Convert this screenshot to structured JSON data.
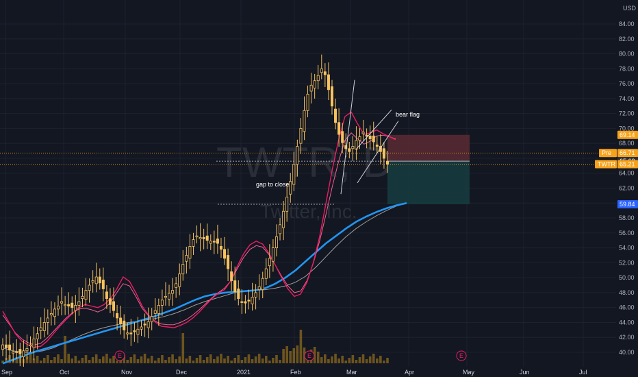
{
  "header": {
    "currency": "USD"
  },
  "watermark": {
    "symbol_text": "TWTR, D",
    "name": "Twitter, Inc."
  },
  "price_axis": {
    "ticks": [
      "84.00",
      "82.00",
      "80.00",
      "78.00",
      "76.00",
      "74.00",
      "72.00",
      "70.00",
      "68.00",
      "66.00",
      "64.00",
      "62.00",
      "60.00",
      "58.00",
      "56.00",
      "54.00",
      "52.00",
      "50.00",
      "48.00",
      "46.00",
      "44.00",
      "42.00",
      "40.00"
    ],
    "tags": [
      {
        "label": "",
        "value_text": "69.14",
        "color": "#f7a21b"
      },
      {
        "label": "Pre",
        "value_text": "66.71",
        "color": "#f7a21b"
      },
      {
        "label": "",
        "value_text": "65.62",
        "color": "#2a2e39"
      },
      {
        "label": "TWTR",
        "value_text": "65.21",
        "color": "#f7a21b"
      },
      {
        "label": "",
        "value_text": "59.84",
        "color": "#2962ff"
      }
    ]
  },
  "time_axis": {
    "labels": [
      "Sep",
      "Oct",
      "Nov",
      "Dec",
      "2021",
      "Feb",
      "Mar",
      "Apr",
      "May",
      "Jun",
      "Jul"
    ]
  },
  "earnings_markers": [
    {
      "label": "E"
    },
    {
      "label": "E"
    },
    {
      "label": "E"
    }
  ],
  "annotations": {
    "gap": "gap to close",
    "flag": "bear flag"
  },
  "colors": {
    "background": "#131722",
    "candle_up": "#f7c35f",
    "candle_down": "#f7c35f",
    "ma_fast": "#e91e63",
    "ma_mid": "#f06292",
    "ma_slow": "#9e9e9e",
    "ma_long": "#2196f3",
    "volume": "#b8871b",
    "loss_zone": "#5a2a33",
    "profit_zone": "#163b3f"
  },
  "chart_data": {
    "type": "candlestick",
    "symbol": "TWTR",
    "timeframe": "D",
    "ylim": [
      39,
      86
    ],
    "months": [
      "Sep",
      "Oct",
      "Nov",
      "Dec",
      "2021",
      "Feb",
      "Mar",
      "Apr",
      "May",
      "Jun",
      "Jul"
    ],
    "closes": [
      41.0,
      40.6,
      40.3,
      40.1,
      40.0,
      39.8,
      40.2,
      40.5,
      41.0,
      41.8,
      42.5,
      43.3,
      44.0,
      44.6,
      45.2,
      45.8,
      46.2,
      46.8,
      46.4,
      46.2,
      46.0,
      46.3,
      46.8,
      47.5,
      48.3,
      49.0,
      49.6,
      50.1,
      49.3,
      48.5,
      47.2,
      46.4,
      45.6,
      44.6,
      43.8,
      43.0,
      42.6,
      42.5,
      42.8,
      43.1,
      43.4,
      43.7,
      44.1,
      44.8,
      45.6,
      46.3,
      47.0,
      47.5,
      47.9,
      48.3,
      49.2,
      50.5,
      51.8,
      53.0,
      54.2,
      55.1,
      55.6,
      55.4,
      55.2,
      55.0,
      54.9,
      54.8,
      54.6,
      53.8,
      52.6,
      51.2,
      49.6,
      48.1,
      47.2,
      46.8,
      46.6,
      46.9,
      47.4,
      48.0,
      48.8,
      49.9,
      51.2,
      52.6,
      54.0,
      55.5,
      57.1,
      58.9,
      60.8,
      62.9,
      65.2,
      67.6,
      70.0,
      72.4,
      74.6,
      75.8,
      76.4,
      77.1,
      78.0,
      77.2,
      75.2,
      73.0,
      70.8,
      69.2,
      68.1,
      67.3,
      66.9,
      67.6,
      68.4,
      68.9,
      69.5,
      69.0,
      68.6,
      68.2,
      67.6,
      66.9,
      66.0,
      65.2
    ],
    "ma_fast": [
      45.5,
      44.0,
      42.5,
      41.5,
      41.0,
      40.7,
      40.8,
      41.5,
      42.5,
      43.5,
      44.4,
      45.2,
      46.0,
      46.4,
      46.2,
      46.0,
      46.4,
      47.2,
      48.5,
      50.1,
      49.5,
      48.0,
      46.2,
      45.0,
      44.1,
      43.5,
      43.4,
      43.3,
      43.6,
      44.0,
      44.6,
      45.4,
      46.3,
      47.2,
      47.9,
      48.4,
      49.6,
      51.5,
      53.2,
      54.4,
      54.9,
      54.5,
      53.3,
      51.7,
      50.0,
      48.5,
      47.5,
      47.8,
      49.4,
      52.0,
      55.5,
      60.0,
      64.5,
      68.5,
      71.6,
      72.2,
      70.6,
      69.2,
      69.4,
      69.8,
      69.3,
      68.9,
      68.5
    ],
    "ma_mid": [
      45.0,
      43.8,
      42.6,
      41.8,
      41.3,
      41.0,
      41.2,
      41.9,
      42.8,
      43.7,
      44.6,
      45.3,
      45.8,
      45.9,
      45.7,
      45.4,
      45.8,
      46.7,
      48.0,
      49.2,
      48.9,
      47.5,
      45.9,
      44.9,
      44.2,
      43.8,
      43.7,
      43.7,
      44.0,
      44.4,
      45.0,
      45.7,
      46.5,
      47.3,
      48.0,
      48.6,
      49.6,
      51.2,
      52.7,
      53.8,
      54.3,
      54.1,
      53.1,
      51.7,
      50.2,
      48.9,
      48.0,
      48.2,
      49.6,
      51.9,
      54.9,
      58.5,
      62.2,
      65.6,
      68.4,
      69.4,
      68.6,
      67.9,
      68.3,
      69.0,
      69.1,
      68.9,
      68.6
    ],
    "ma_slow": [
      40.6,
      40.2,
      40.0,
      40.0,
      40.2,
      40.6,
      41.2,
      41.8,
      42.4,
      42.9,
      43.3,
      43.6,
      43.9,
      44.1,
      44.3,
      44.5,
      44.8,
      45.2,
      45.7,
      46.3,
      46.8,
      47.2,
      47.6,
      48.0,
      48.2,
      48.3,
      48.4,
      48.6,
      48.9,
      49.4,
      50.2,
      51.4,
      52.8,
      54.2,
      55.5,
      56.6,
      57.5,
      58.3,
      59.0,
      59.6,
      60.0
    ],
    "ma_long": [
      38.5,
      39.0,
      39.5,
      40.0,
      40.4,
      40.8,
      41.2,
      41.6,
      42.0,
      42.4,
      42.8,
      43.2,
      43.6,
      44.0,
      44.4,
      44.8,
      45.3,
      45.8,
      46.4,
      47.0,
      47.5,
      47.8,
      48.0,
      48.1,
      48.2,
      48.3,
      48.6,
      49.2,
      50.0,
      51.0,
      52.2,
      53.4,
      54.6,
      55.6,
      56.6,
      57.5,
      58.2,
      58.8,
      59.3,
      59.7,
      60.0
    ],
    "gap_level": 59.84,
    "position": {
      "entry": 65.62,
      "stop": 69.14,
      "target": 59.84
    }
  }
}
